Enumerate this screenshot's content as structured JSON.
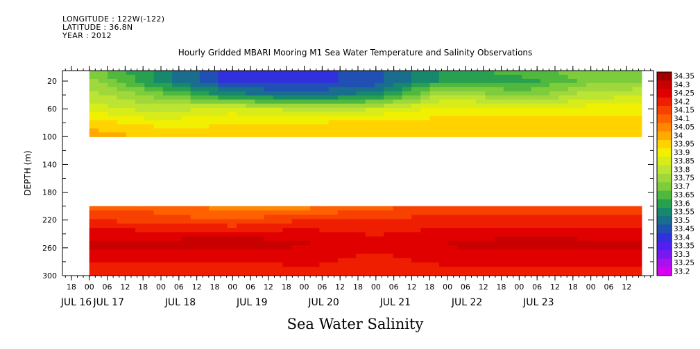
{
  "header": {
    "longitude": "LONGITUDE : 122W(-122)",
    "latitude": "LATITUDE : 36.8N",
    "year": "YEAR : 2012"
  },
  "chart_data": {
    "type": "heatmap",
    "title": "Hourly Gridded MBARI Mooring M1 Sea Water Temperature and Salinity Observations",
    "xlabel": "Sea Water Salinity",
    "ylabel": "DEPTH (m)",
    "x_hour_labels": [
      "18",
      "00",
      "06",
      "12",
      "18",
      "00",
      "06",
      "12",
      "18",
      "00",
      "06",
      "12",
      "18",
      "00",
      "06",
      "12",
      "18",
      "00",
      "06",
      "12",
      "18",
      "00",
      "06",
      "12",
      "18",
      "00",
      "06",
      "12",
      "18",
      "00",
      "06",
      "12"
    ],
    "x_date_labels": [
      "JUL 16",
      "JUL 17",
      "JUL 18",
      "JUL 19",
      "JUL 20",
      "JUL 21",
      "JUL 22",
      "JUL 23"
    ],
    "y_ticks": [
      "20",
      "60",
      "100",
      "140",
      "180",
      "220",
      "260",
      "300"
    ],
    "y_range": [
      5,
      300
    ],
    "y_reversed": true,
    "x_range_hours": [
      -9,
      189
    ],
    "data_start_hour": 0,
    "data_end_hour": 185,
    "no_data_depth_range": [
      100,
      200
    ],
    "colorbar": {
      "labels": [
        "34.35",
        "34.3",
        "34.25",
        "34.2",
        "34.15",
        "34.1",
        "34.05",
        "34",
        "33.95",
        "33.9",
        "33.85",
        "33.8",
        "33.75",
        "33.7",
        "33.65",
        "33.6",
        "33.55",
        "33.5",
        "33.45",
        "33.4",
        "33.35",
        "33.3",
        "33.25",
        "33.2"
      ],
      "colors": [
        "#a00000",
        "#c80000",
        "#e00000",
        "#f01e00",
        "#f84000",
        "#ff6000",
        "#ff8800",
        "#ffaa00",
        "#ffd200",
        "#f0f000",
        "#d8ec1a",
        "#bce432",
        "#a0d83c",
        "#7ccc3c",
        "#50b83c",
        "#28a050",
        "#18886c",
        "#186e8c",
        "#2050b4",
        "#3030dc",
        "#5020f0",
        "#7818f0",
        "#a810f0",
        "#d800f0"
      ]
    },
    "upper_layer_depths_m": [
      5,
      20,
      40,
      60,
      80,
      100
    ],
    "upper_layer_time_hours": [
      0,
      24,
      48,
      72,
      96,
      120,
      144,
      168,
      185
    ],
    "upper_layer_salinity": [
      [
        33.7,
        33.55,
        33.4,
        33.4,
        33.45,
        33.6,
        33.65,
        33.7,
        33.72
      ],
      [
        33.75,
        33.55,
        33.4,
        33.4,
        33.45,
        33.6,
        33.6,
        33.7,
        33.72
      ],
      [
        33.8,
        33.7,
        33.55,
        33.5,
        33.55,
        33.8,
        33.7,
        33.8,
        33.82
      ],
      [
        33.85,
        33.8,
        33.85,
        33.8,
        33.82,
        33.9,
        33.88,
        33.9,
        33.9
      ],
      [
        33.95,
        33.9,
        33.92,
        33.92,
        33.95,
        33.95,
        33.95,
        33.95,
        33.95
      ],
      [
        34.0,
        33.97,
        33.95,
        33.95,
        33.95,
        33.95,
        33.95,
        33.95,
        33.95
      ]
    ],
    "lower_layer_depths_m": [
      200,
      220,
      240,
      255,
      270,
      290,
      300
    ],
    "lower_layer_time_hours": [
      0,
      24,
      48,
      72,
      96,
      120,
      144,
      168,
      185
    ],
    "lower_layer_salinity": [
      [
        34.1,
        34.1,
        34.05,
        34.05,
        34.1,
        34.15,
        34.15,
        34.15,
        34.15
      ],
      [
        34.18,
        34.15,
        34.12,
        34.18,
        34.18,
        34.2,
        34.2,
        34.2,
        34.2
      ],
      [
        34.25,
        34.25,
        34.25,
        34.25,
        34.22,
        34.25,
        34.25,
        34.25,
        34.25
      ],
      [
        34.3,
        34.3,
        34.32,
        34.28,
        34.25,
        34.28,
        34.32,
        34.3,
        34.3
      ],
      [
        34.25,
        34.25,
        34.25,
        34.25,
        34.22,
        34.25,
        34.25,
        34.25,
        34.25
      ],
      [
        34.2,
        34.2,
        34.2,
        34.22,
        34.2,
        34.22,
        34.22,
        34.22,
        34.22
      ],
      [
        34.2,
        34.22,
        34.2,
        34.22,
        34.2,
        34.22,
        34.22,
        34.22,
        34.22
      ]
    ]
  }
}
